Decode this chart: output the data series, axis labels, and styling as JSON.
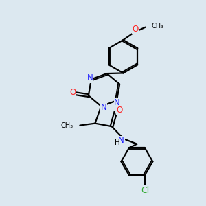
{
  "bg_color": "#dce8f0",
  "bond_color": "#000000",
  "N_color": "#2020ff",
  "O_color": "#ff2020",
  "Cl_color": "#33aa33",
  "line_width": 1.6,
  "font_size": 8.5,
  "xlim": [
    0,
    10
  ],
  "ylim": [
    0,
    10
  ]
}
